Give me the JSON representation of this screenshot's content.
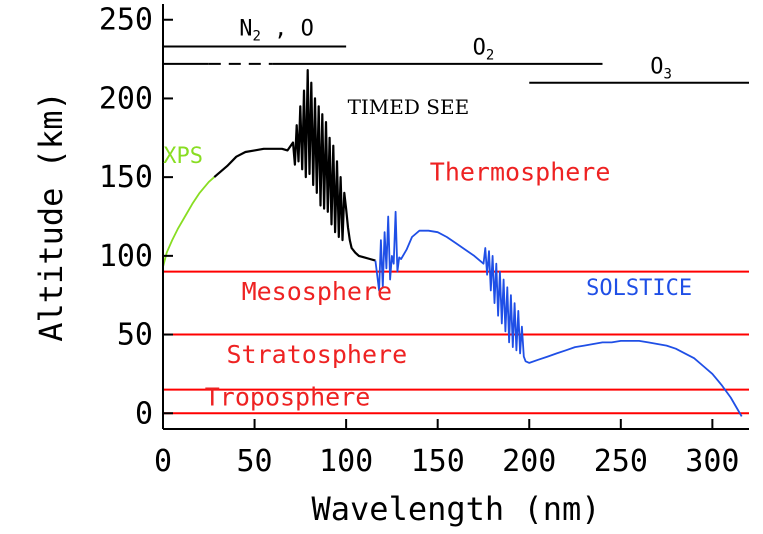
{
  "chart_data": {
    "type": "line",
    "title": "",
    "xlabel": "Wavelength (nm)",
    "ylabel": "Altitude (km)",
    "xlim": [
      0,
      320
    ],
    "ylim": [
      -10,
      260
    ],
    "xticks": [
      "0",
      "50",
      "100",
      "150",
      "200",
      "250",
      "300"
    ],
    "yticks": [
      "0",
      "50",
      "100",
      "150",
      "200",
      "250"
    ],
    "grid": false,
    "colors": {
      "xps": "#88dd22",
      "timed_see": "#000000",
      "solstice": "#1f4fe6",
      "regions": "#ff0000",
      "region_text": "#ee2222",
      "top_title": "#1a3cff"
    },
    "boundaries": [
      {
        "name": "Thermosphere",
        "altitude": 90
      },
      {
        "name": "Mesosphere",
        "altitude": 50
      },
      {
        "name": "Stratosphere",
        "altitude": 15
      },
      {
        "name": "Troposphere",
        "altitude": 0
      }
    ],
    "region_labels": [
      {
        "text": "Thermosphere",
        "x": 195,
        "y": 148
      },
      {
        "text": "Mesosphere",
        "x": 84,
        "y": 72
      },
      {
        "text": "Stratosphere",
        "x": 84,
        "y": 32
      },
      {
        "text": "Troposphere",
        "x": 68,
        "y": 5
      }
    ],
    "instrument_labels": [
      {
        "text": "XPS",
        "x": 11,
        "y": 159
      },
      {
        "text": "TIMED SEE",
        "x": 134,
        "y": 190
      },
      {
        "text": "SOLSTICE",
        "x": 260,
        "y": 75
      }
    ],
    "absorbers": [
      {
        "name": "N2 , O",
        "x_start": 0,
        "x_end": 100,
        "altitude": 233,
        "label_x": 62,
        "label_y": 240
      },
      {
        "name": "O2",
        "x_start": 0,
        "x_end": 240,
        "altitude": 222,
        "dashed_from": 25,
        "dashed_to": 60,
        "label_x": 175,
        "label_y": 228
      },
      {
        "name": "O3",
        "x_start": 200,
        "x_end": 320,
        "altitude": 210,
        "label_x": 272,
        "label_y": 216
      }
    ],
    "series": [
      {
        "name": "XPS",
        "x": [
          0,
          2,
          5,
          8,
          12,
          16,
          20,
          25,
          28
        ],
        "y": [
          93,
          102,
          110,
          117,
          125,
          133,
          140,
          147,
          150
        ]
      },
      {
        "name": "TIMED SEE",
        "x": [
          28,
          35,
          40,
          45,
          50,
          55,
          60,
          65,
          68,
          71,
          72,
          73,
          74,
          75,
          76,
          77,
          78,
          79,
          80,
          81,
          82,
          83,
          84,
          85,
          86,
          87,
          88,
          89,
          90,
          91,
          92,
          93,
          94,
          95,
          96,
          97,
          98,
          99,
          100,
          101,
          102,
          103,
          105,
          107,
          110,
          113,
          116
        ],
        "y": [
          150,
          157,
          163,
          166,
          167,
          168,
          168,
          168,
          167,
          172,
          158,
          183,
          160,
          195,
          155,
          205,
          150,
          218,
          152,
          210,
          145,
          200,
          140,
          195,
          132,
          190,
          130,
          185,
          128,
          175,
          120,
          170,
          115,
          160,
          112,
          150,
          110,
          140,
          130,
          118,
          110,
          105,
          102,
          100,
          99,
          98,
          97
        ]
      },
      {
        "name": "SOLSTICE",
        "x": [
          116,
          118,
          119,
          120,
          121,
          122,
          123,
          124,
          125,
          126,
          127,
          128,
          129,
          130,
          133,
          136,
          140,
          145,
          150,
          155,
          160,
          165,
          170,
          175,
          176,
          177,
          178,
          179,
          180,
          181,
          182,
          183,
          184,
          185,
          186,
          187,
          188,
          189,
          190,
          191,
          192,
          193,
          194,
          195,
          196,
          197,
          198,
          200,
          205,
          210,
          215,
          220,
          225,
          230,
          235,
          240,
          245,
          250,
          255,
          260,
          265,
          270,
          275,
          280,
          285,
          290,
          295,
          300,
          305,
          310,
          313,
          316
        ],
        "y": [
          97,
          78,
          110,
          80,
          115,
          92,
          125,
          85,
          100,
          95,
          128,
          90,
          99,
          98,
          104,
          112,
          116,
          116,
          115,
          112,
          108,
          104,
          100,
          95,
          105,
          88,
          103,
          78,
          100,
          70,
          95,
          62,
          90,
          57,
          85,
          52,
          80,
          45,
          75,
          42,
          70,
          40,
          65,
          38,
          55,
          36,
          33,
          32,
          34,
          36,
          38,
          40,
          42,
          43,
          44,
          45,
          45,
          46,
          46,
          46,
          45,
          44,
          43,
          41,
          38,
          35,
          30,
          25,
          18,
          10,
          4,
          -2
        ]
      }
    ]
  }
}
